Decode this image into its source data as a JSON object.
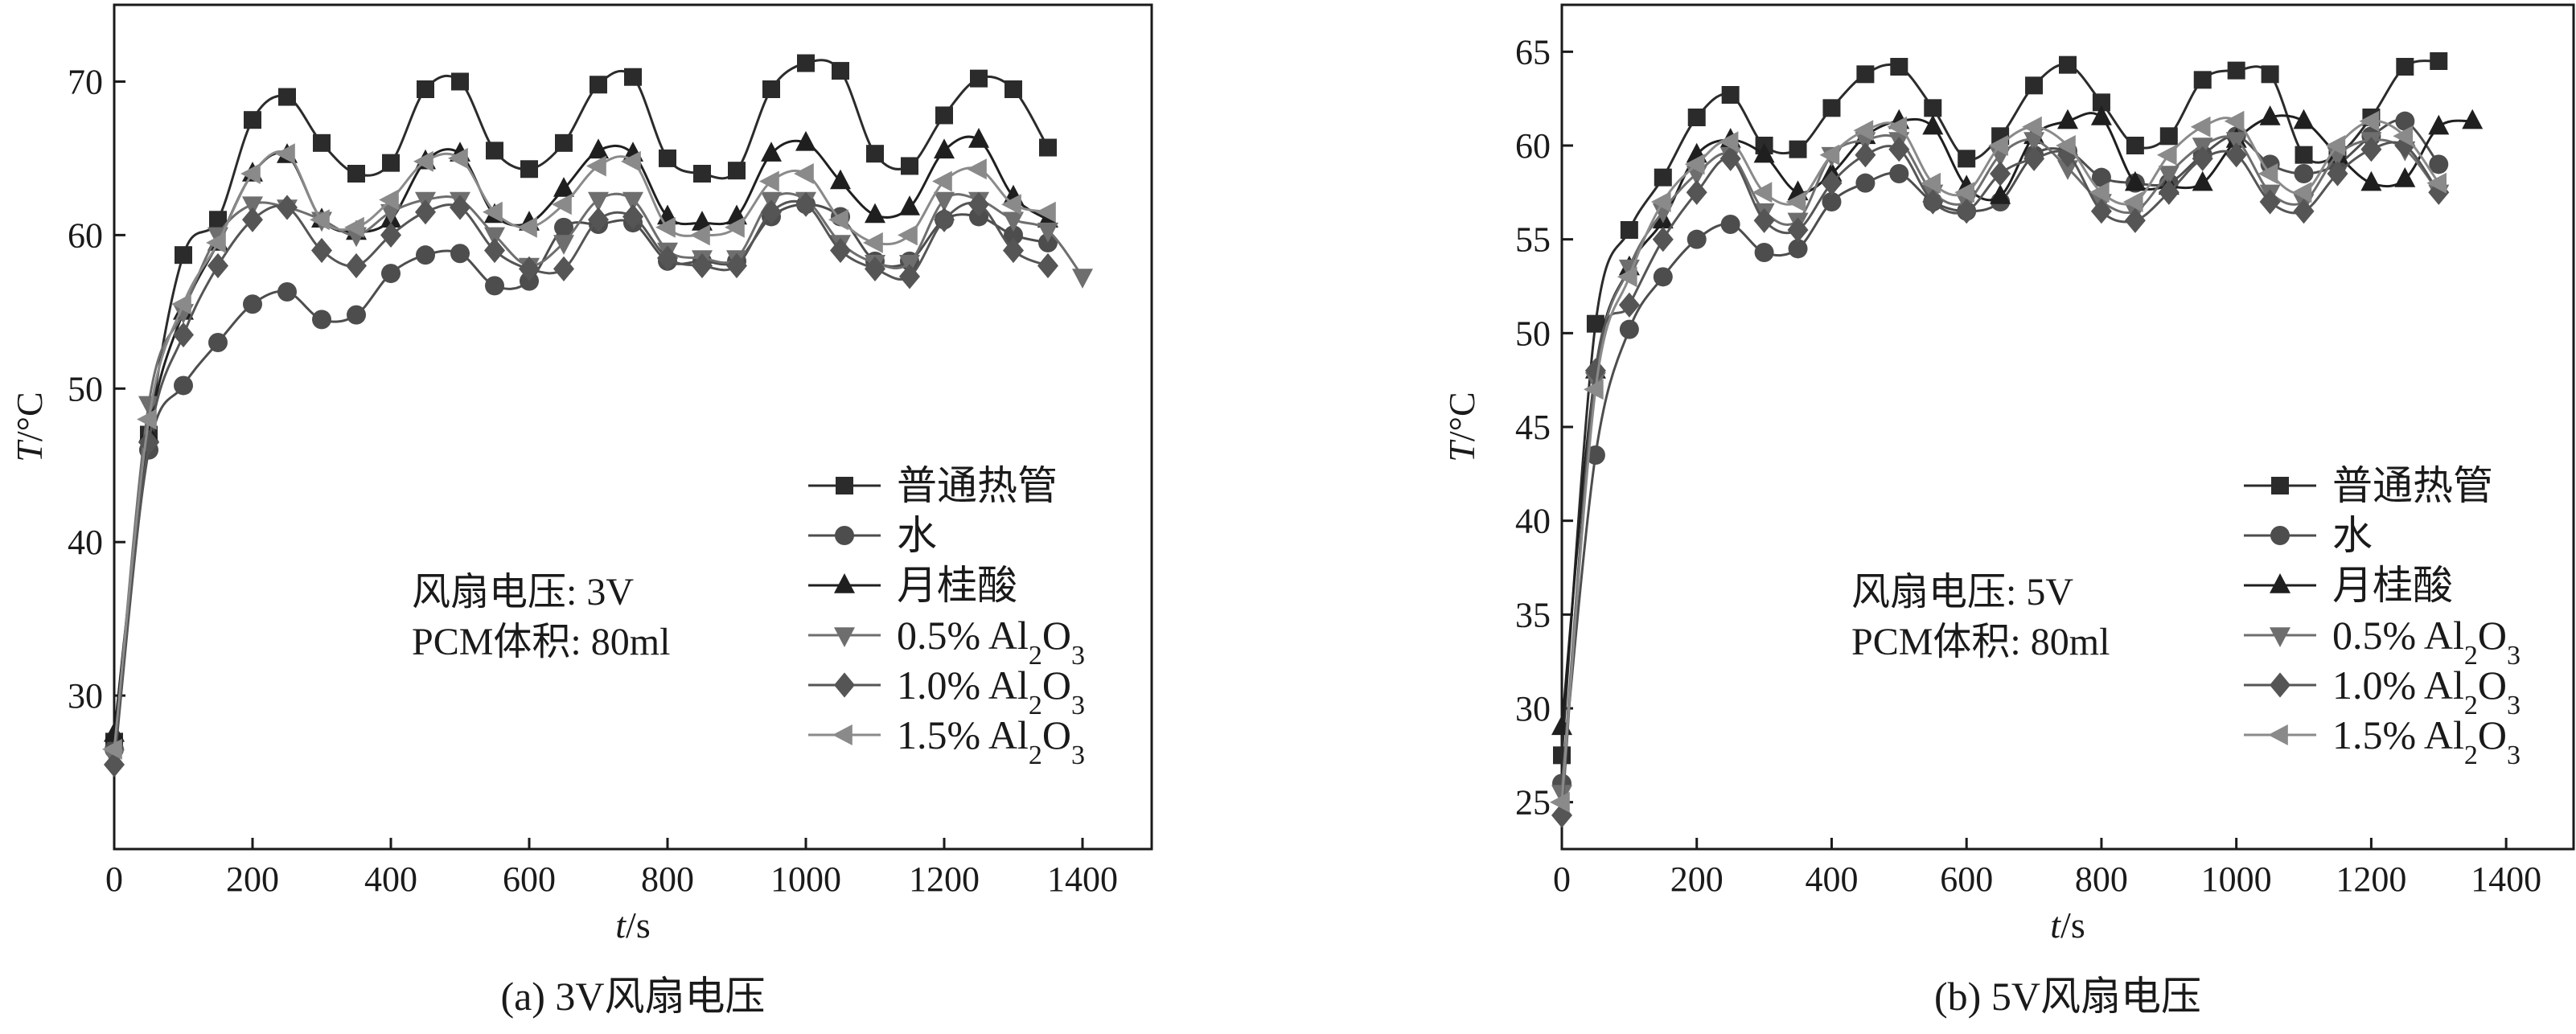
{
  "chart_data": [
    {
      "type": "line",
      "caption": "(a) 3V风扇电压",
      "xlabel_var": "t",
      "xlabel_unit": "/s",
      "ylabel_var": "T",
      "ylabel_unit": "/°C",
      "xlim": [
        0,
        1500
      ],
      "ylim": [
        20,
        75
      ],
      "xticks": [
        0,
        200,
        400,
        600,
        800,
        1000,
        1200,
        1400
      ],
      "yticks": [
        30,
        40,
        50,
        60,
        70
      ],
      "annotation": [
        "风扇电压: 3V",
        "PCM体积: 80ml"
      ],
      "legend_position": "lower-right",
      "series": [
        {
          "name": "普通热管",
          "marker": "square",
          "color": "#2b2b2b",
          "x": [
            0,
            50,
            100,
            150,
            200,
            250,
            300,
            350,
            400,
            450,
            500,
            550,
            600,
            650,
            700,
            750,
            800,
            850,
            900,
            950,
            1000,
            1050,
            1100,
            1150,
            1200,
            1250,
            1300,
            1350
          ],
          "y": [
            27,
            47,
            58.7,
            61,
            67.5,
            69,
            66,
            64,
            64.7,
            69.5,
            70,
            65.5,
            64.3,
            66,
            69.8,
            70.3,
            65,
            64,
            64.2,
            69.5,
            71.2,
            70.7,
            65.3,
            64.5,
            67.8,
            70.2,
            69.5,
            65.7
          ]
        },
        {
          "name": "水",
          "marker": "circle",
          "color": "#4d4d4d",
          "x": [
            0,
            50,
            100,
            150,
            200,
            250,
            300,
            350,
            400,
            450,
            500,
            550,
            600,
            650,
            700,
            750,
            800,
            850,
            900,
            950,
            1000,
            1050,
            1100,
            1150,
            1200,
            1250,
            1300,
            1350
          ],
          "y": [
            26.5,
            46,
            50.2,
            53,
            55.5,
            56.3,
            54.5,
            54.8,
            57.5,
            58.7,
            58.8,
            56.7,
            57,
            60.5,
            60.7,
            60.8,
            58.3,
            58.3,
            58.3,
            61.2,
            62,
            61.2,
            58.3,
            58.3,
            61,
            61.2,
            60,
            59.5
          ]
        },
        {
          "name": "月桂酸",
          "marker": "triangle-up",
          "color": "#1f1f1f",
          "x": [
            0,
            50,
            100,
            150,
            200,
            250,
            300,
            350,
            400,
            450,
            500,
            550,
            600,
            650,
            700,
            750,
            800,
            850,
            900,
            950,
            1000,
            1050,
            1100,
            1150,
            1200,
            1250,
            1300,
            1350
          ],
          "y": [
            27.5,
            47,
            55,
            59.5,
            64,
            65.2,
            61,
            60.2,
            61,
            64.8,
            65.3,
            61.3,
            60.8,
            63,
            65.5,
            65.3,
            61.2,
            60.8,
            61.2,
            65.3,
            66,
            63.5,
            61.3,
            61.8,
            65.5,
            66.2,
            62.5,
            61
          ]
        },
        {
          "name": "0.5% Al2O3",
          "marker": "triangle-down",
          "color": "#6e6e6e",
          "x": [
            0,
            50,
            100,
            150,
            200,
            250,
            300,
            350,
            400,
            450,
            500,
            550,
            600,
            650,
            700,
            750,
            800,
            850,
            900,
            950,
            1000,
            1050,
            1100,
            1150,
            1200,
            1250,
            1300,
            1350,
            1400
          ],
          "y": [
            26,
            49,
            55,
            60,
            62,
            61.8,
            61,
            60,
            61.5,
            62.3,
            62.3,
            60,
            58,
            59.5,
            62.3,
            62.3,
            59,
            58.5,
            58.5,
            62.3,
            62.3,
            59.5,
            58.2,
            58.2,
            62.3,
            62.3,
            61,
            60.3,
            57.3
          ]
        },
        {
          "name": "1.0% Al2O3",
          "marker": "diamond",
          "color": "#555555",
          "x": [
            0,
            50,
            100,
            150,
            200,
            250,
            300,
            350,
            400,
            450,
            500,
            550,
            600,
            650,
            700,
            750,
            800,
            850,
            900,
            950,
            1000,
            1050,
            1100,
            1150,
            1200,
            1250,
            1300,
            1350
          ],
          "y": [
            25.5,
            46.5,
            53.5,
            58,
            61,
            61.8,
            59,
            58,
            60,
            61.5,
            61.8,
            59,
            57.8,
            57.8,
            61,
            61.2,
            58.5,
            58,
            58,
            61.5,
            62,
            59,
            57.8,
            57.3,
            61,
            62,
            59,
            58
          ]
        },
        {
          "name": "1.5% Al2O3",
          "marker": "triangle-left",
          "color": "#8a8a8a",
          "x": [
            0,
            50,
            100,
            150,
            200,
            250,
            300,
            350,
            400,
            450,
            500,
            550,
            600,
            650,
            700,
            750,
            800,
            850,
            900,
            950,
            1000,
            1050,
            1100,
            1150,
            1200,
            1250,
            1300,
            1350
          ],
          "y": [
            26.5,
            48,
            55.5,
            59.5,
            64,
            65.3,
            61,
            60.5,
            62.3,
            64.8,
            65,
            61.5,
            60.5,
            62,
            64.5,
            64.8,
            60.5,
            60,
            60.5,
            63.5,
            64,
            61,
            59.5,
            60,
            63.5,
            64.3,
            62,
            61.5
          ]
        }
      ]
    },
    {
      "type": "line",
      "caption": "(b) 5V风扇电压",
      "xlabel_var": "t",
      "xlabel_unit": "/s",
      "ylabel_var": "T",
      "ylabel_unit": "/°C",
      "xlim": [
        0,
        1500
      ],
      "ylim": [
        22.5,
        67.5
      ],
      "xticks": [
        0,
        200,
        400,
        600,
        800,
        1000,
        1200,
        1400
      ],
      "yticks": [
        25,
        30,
        35,
        40,
        45,
        50,
        55,
        60,
        65
      ],
      "annotation": [
        "风扇电压: 5V",
        "PCM体积: 80ml"
      ],
      "legend_position": "lower-right",
      "series": [
        {
          "name": "普通热管",
          "marker": "square",
          "color": "#2b2b2b",
          "x": [
            0,
            50,
            100,
            150,
            200,
            250,
            300,
            350,
            400,
            450,
            500,
            550,
            600,
            650,
            700,
            750,
            800,
            850,
            900,
            950,
            1000,
            1050,
            1100,
            1150,
            1200,
            1250,
            1300
          ],
          "y": [
            27.5,
            50.5,
            55.5,
            58.3,
            61.5,
            62.7,
            60,
            59.8,
            62,
            63.8,
            64.2,
            62,
            59.3,
            60.5,
            63.2,
            64.3,
            62.3,
            60,
            60.5,
            63.5,
            64,
            63.8,
            59.5,
            59.5,
            61.5,
            64.2,
            64.5
          ]
        },
        {
          "name": "水",
          "marker": "circle",
          "color": "#4d4d4d",
          "x": [
            0,
            50,
            100,
            150,
            200,
            250,
            300,
            350,
            400,
            450,
            500,
            550,
            600,
            650,
            700,
            750,
            800,
            850,
            900,
            950,
            1000,
            1050,
            1100,
            1150,
            1200,
            1250,
            1300
          ],
          "y": [
            26,
            43.5,
            50.2,
            53,
            55,
            55.8,
            54.3,
            54.5,
            57,
            58,
            58.5,
            57,
            56.5,
            57,
            59.5,
            59.7,
            58.3,
            58,
            58,
            59.5,
            60.5,
            59,
            58.5,
            59,
            60.5,
            61.3,
            59
          ]
        },
        {
          "name": "月桂酸",
          "marker": "triangle-up",
          "color": "#1f1f1f",
          "x": [
            0,
            50,
            100,
            150,
            200,
            250,
            300,
            350,
            400,
            450,
            500,
            550,
            600,
            650,
            700,
            750,
            800,
            850,
            900,
            950,
            1000,
            1050,
            1100,
            1150,
            1200,
            1250,
            1300,
            1350
          ],
          "y": [
            29,
            48,
            53.5,
            56,
            59.5,
            60.3,
            59.5,
            57.5,
            58.5,
            60.5,
            61.3,
            61,
            57.8,
            57.3,
            60.5,
            61.3,
            61.5,
            58,
            57.8,
            58,
            60.3,
            61.5,
            61.3,
            59.5,
            58,
            58.2,
            61,
            61.3
          ]
        },
        {
          "name": "0.5% Al2O3",
          "marker": "triangle-down",
          "color": "#6e6e6e",
          "x": [
            0,
            50,
            100,
            150,
            200,
            250,
            300,
            350,
            400,
            450,
            500,
            550,
            600,
            650,
            700,
            750,
            800,
            850,
            900,
            950,
            1000,
            1050,
            1100,
            1150,
            1200,
            1250,
            1300
          ],
          "y": [
            25.5,
            47.5,
            53.5,
            56.5,
            58.5,
            59.5,
            56.5,
            56,
            59.5,
            60.3,
            60.3,
            57.5,
            57,
            59.5,
            60.3,
            58.8,
            57,
            56.5,
            58.5,
            60,
            60.3,
            57.5,
            57,
            59.5,
            60.3,
            59.8,
            57.5
          ]
        },
        {
          "name": "1.0% Al2O3",
          "marker": "diamond",
          "color": "#555555",
          "x": [
            0,
            50,
            100,
            150,
            200,
            250,
            300,
            350,
            400,
            450,
            500,
            550,
            600,
            650,
            700,
            750,
            800,
            850,
            900,
            950,
            1000,
            1050,
            1100,
            1150,
            1200,
            1250,
            1300
          ],
          "y": [
            24.3,
            48,
            51.5,
            55,
            57.5,
            59.3,
            56,
            55.5,
            58,
            59.5,
            59.8,
            57,
            56.5,
            58.5,
            59.3,
            59.5,
            56.5,
            56,
            57.5,
            59.3,
            59.5,
            57,
            56.5,
            58.5,
            59.8,
            60,
            57.5
          ]
        },
        {
          "name": "1.5% Al2O3",
          "marker": "triangle-left",
          "color": "#8a8a8a",
          "x": [
            0,
            50,
            100,
            150,
            200,
            250,
            300,
            350,
            400,
            450,
            500,
            550,
            600,
            650,
            700,
            750,
            800,
            850,
            900,
            950,
            1000,
            1050,
            1100,
            1150,
            1200,
            1250,
            1300
          ],
          "y": [
            25,
            47,
            53,
            57,
            59,
            60.2,
            57.5,
            57,
            59.5,
            60.8,
            61,
            58,
            57.5,
            60,
            61,
            60,
            57.5,
            57,
            59.5,
            61,
            61.3,
            58.5,
            57.5,
            60,
            61.3,
            60.5,
            58
          ]
        }
      ]
    }
  ]
}
